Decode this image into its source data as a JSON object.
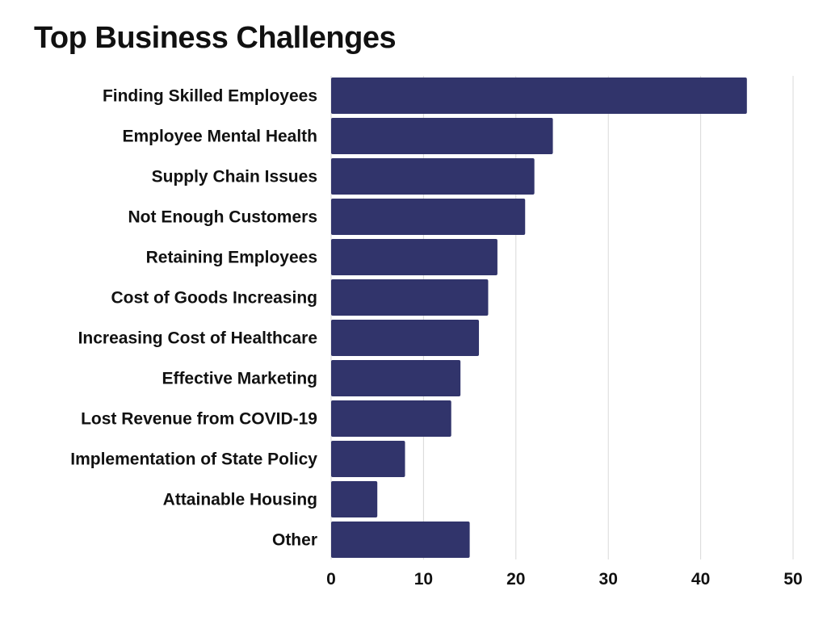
{
  "chart_data": {
    "type": "bar",
    "orientation": "horizontal",
    "title": "Top Business Challenges",
    "xlabel": "",
    "ylabel": "",
    "categories": [
      "Finding Skilled Employees",
      "Employee Mental Health",
      "Supply Chain Issues",
      "Not Enough Customers",
      "Retaining Employees",
      "Cost of Goods Increasing",
      "Increasing Cost of Healthcare",
      "Effective Marketing",
      "Lost Revenue from COVID-19",
      "Implementation of State Policy",
      "Attainable Housing",
      "Other"
    ],
    "values": [
      45,
      24,
      22,
      21,
      18,
      17,
      16,
      14,
      13,
      8,
      5,
      15
    ],
    "xlim": [
      0,
      50
    ],
    "xticks": [
      0,
      10,
      20,
      30,
      40,
      50
    ],
    "grid": true,
    "legend": "none",
    "colors": {
      "bar": "#31346b",
      "grid": "#d9d9d9",
      "text": "#111111"
    }
  }
}
